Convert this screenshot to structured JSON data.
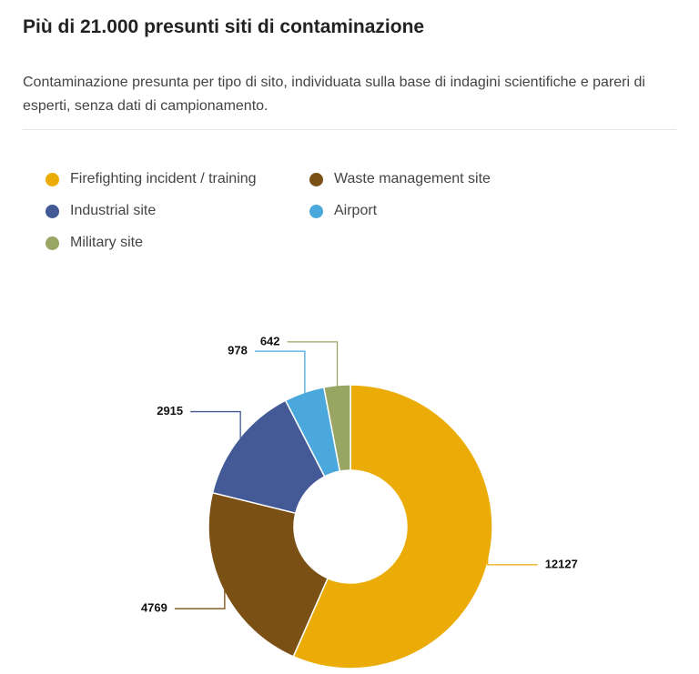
{
  "chart_data": {
    "type": "donut",
    "title": "Più di 21.000 presunti siti di contaminazione",
    "subtitle": "Contaminazione presunta per tipo di sito, individuata sulla base di indagini scientifiche e pareri di esperti, senza dati di campionamento.",
    "categories": [
      "Firefighting incident / training",
      "Waste management site",
      "Industrial site",
      "Airport",
      "Military site"
    ],
    "values": [
      12127,
      4769,
      2915,
      978,
      642
    ],
    "colors": [
      "#ebac07",
      "#7a5015",
      "#435a97",
      "#4aa8dc",
      "#99a563"
    ]
  }
}
